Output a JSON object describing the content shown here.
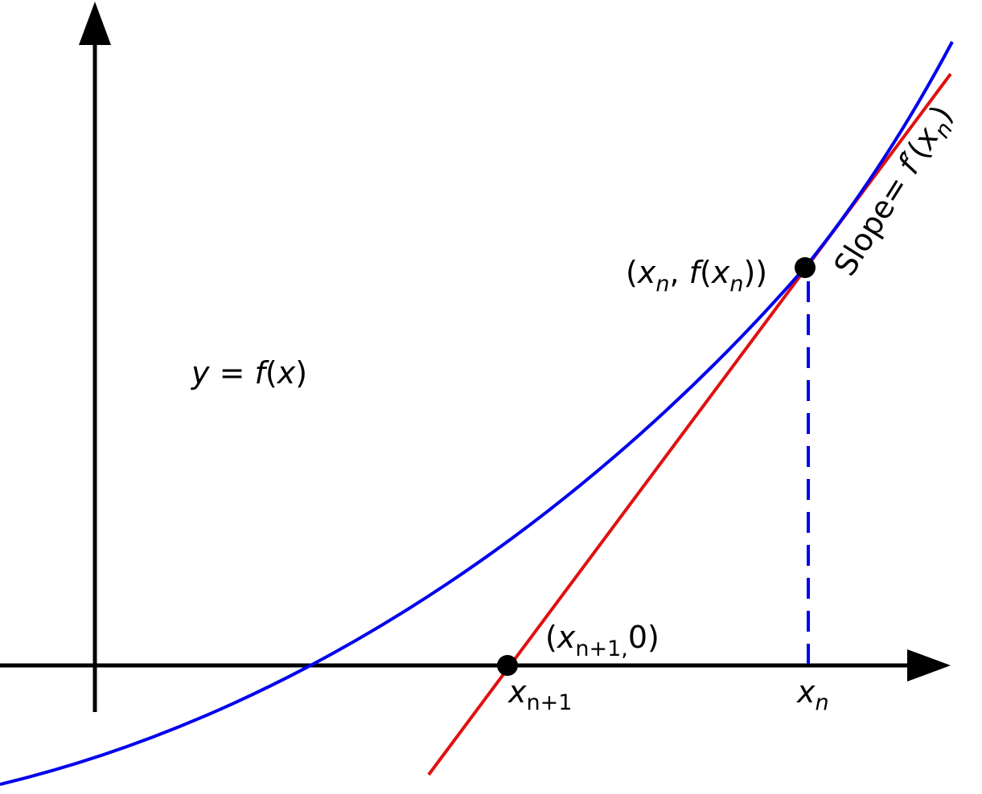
{
  "diagram": {
    "colors": {
      "axes": "#000000",
      "curve": "#0000ee",
      "tangent": "#e01010",
      "guide": "#0000ee",
      "points": "#000000"
    },
    "labels": {
      "curve_label": {
        "y": "y",
        "eq": " = ",
        "f": "f",
        "open": "(",
        "x": "x",
        "close": ")"
      },
      "point_xn": {
        "open": "(",
        "x": "x",
        "sub": "n",
        "comma": ", ",
        "f": "f",
        "open2": "(",
        "x2": "x",
        "sub2": "n",
        "close": "))"
      },
      "point_xn1": {
        "open": "(",
        "x": "x",
        "sub": "n+1,",
        "zero": "0",
        "close": ")"
      },
      "tick_xn1": {
        "x": "x",
        "sub": "n+1"
      },
      "tick_xn": {
        "x": "x",
        "sub": "n"
      },
      "slope": {
        "text": "Slope= ",
        "f": "f′",
        "open": "(",
        "x": "x",
        "sub": "n",
        "close": ")"
      }
    },
    "icons": {
      "y_axis_arrow": "arrowhead-up-icon",
      "x_axis_arrow": "arrowhead-right-icon"
    }
  }
}
